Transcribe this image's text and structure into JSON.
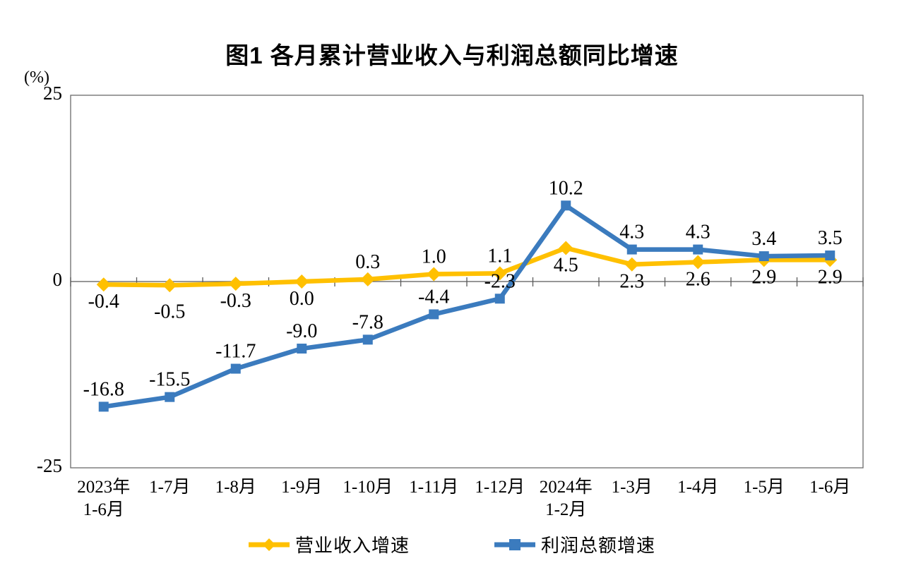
{
  "title": "图1  各月累计营业收入与利润总额同比增速",
  "y_axis": {
    "unit": "(%)"
  },
  "chart_data": {
    "type": "line",
    "title": "图1  各月累计营业收入与利润总额同比增速",
    "categories": [
      "2023年\n1-6月",
      "1-7月",
      "1-8月",
      "1-9月",
      "1-10月",
      "1-11月",
      "1-12月",
      "2024年\n1-2月",
      "1-3月",
      "1-4月",
      "1-5月",
      "1-6月"
    ],
    "series": [
      {
        "name": "营业收入增速",
        "color": "#FFC000",
        "marker": "diamond",
        "values": [
          -0.4,
          -0.5,
          -0.3,
          0.0,
          0.3,
          1.0,
          1.1,
          4.5,
          2.3,
          2.6,
          2.9,
          2.9
        ],
        "label_positions": [
          "below",
          "below-staggered",
          "below",
          "below",
          "above",
          "above",
          "above",
          "below",
          "below",
          "below",
          "below",
          "below"
        ]
      },
      {
        "name": "利润总额增速",
        "color": "#3B7BBE",
        "marker": "square",
        "values": [
          -16.8,
          -15.5,
          -11.7,
          -9.0,
          -7.8,
          -4.4,
          -2.3,
          10.2,
          4.3,
          4.3,
          3.4,
          3.5
        ],
        "label_positions": [
          "above",
          "above",
          "above",
          "above",
          "above",
          "above",
          "above",
          "above",
          "above",
          "above",
          "above",
          "above"
        ]
      }
    ],
    "ylim": [
      -25,
      25
    ],
    "yticks": [
      25,
      0,
      -25
    ],
    "ylabel": "(%)",
    "xlabel": "",
    "grid": false,
    "legend_position": "bottom",
    "axis_color": "#6b6b6b",
    "zero_line_color": "#595959",
    "label_color": "#000000"
  }
}
